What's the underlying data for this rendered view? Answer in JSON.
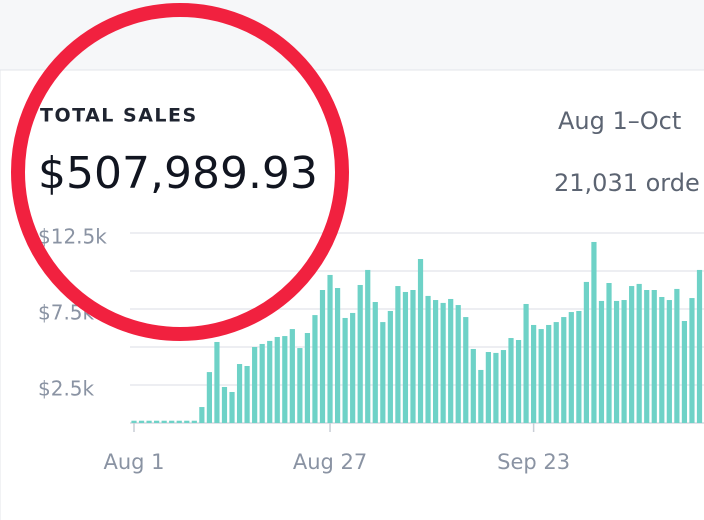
{
  "header": {
    "label": "TOTAL SALES",
    "total": "$507,989.93",
    "date_range": "Aug 1–Oct",
    "orders": "21,031 orde"
  },
  "chart_data": {
    "type": "bar",
    "color": "#6ed2c7",
    "categories": [
      "Aug 1",
      null,
      null,
      null,
      null,
      null,
      null,
      null,
      null,
      null,
      null,
      null,
      null,
      null,
      null,
      null,
      null,
      null,
      null,
      null,
      null,
      null,
      null,
      null,
      null,
      null,
      "Aug 27",
      null,
      null,
      null,
      null,
      null,
      null,
      null,
      null,
      null,
      null,
      null,
      null,
      null,
      null,
      null,
      null,
      null,
      null,
      null,
      null,
      null,
      null,
      null,
      null,
      null,
      null,
      "Sep 23",
      null,
      null,
      null,
      null,
      null,
      null,
      null,
      null,
      null,
      null,
      null,
      null,
      null,
      null,
      null,
      null,
      null,
      null,
      null,
      null,
      null,
      null
    ],
    "values": [
      150,
      150,
      150,
      150,
      150,
      150,
      150,
      150,
      150,
      1050,
      3350,
      5330,
      2370,
      2040,
      3880,
      3750,
      5000,
      5200,
      5400,
      5660,
      5720,
      6180,
      4930,
      5920,
      7100,
      8750,
      9740,
      8880,
      6910,
      7240,
      9080,
      10070,
      7960,
      6640,
      7370,
      9010,
      8620,
      8750,
      10790,
      8360,
      8090,
      7900,
      8160,
      7760,
      6970,
      4870,
      3490,
      4670,
      4610,
      4800,
      5590,
      5460,
      7830,
      6450,
      6180,
      6450,
      6640,
      6970,
      7300,
      7370,
      9280,
      11910,
      8030,
      9210,
      8030,
      8090,
      9010,
      9150,
      8750,
      8750,
      8290,
      8090,
      8820,
      6710,
      8220,
      10070
    ],
    "ylim": [
      0,
      12500
    ],
    "yticks": [
      {
        "value": 2500,
        "label": "$2.5k"
      },
      {
        "value": 7500,
        "label": "$7.5k"
      },
      {
        "value": 12500,
        "label": "$12.5k"
      }
    ],
    "minor_yticks": [
      5000,
      10000
    ],
    "grid": true
  }
}
